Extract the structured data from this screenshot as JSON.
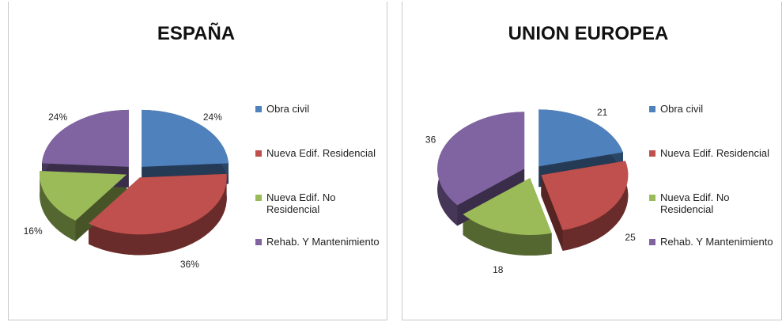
{
  "chart_data": [
    {
      "type": "pie",
      "title": "ESPAÑA",
      "categories": [
        "Obra civil",
        "Nueva Edif. Residencial",
        "Nueva Edif. No Residencial",
        "Rehab. Y Mantenimiento"
      ],
      "values": [
        24,
        36,
        16,
        24
      ],
      "value_labels": [
        "24%",
        "36%",
        "16%",
        "24%"
      ],
      "colors": [
        "#4f81bd",
        "#c0504d",
        "#9bbb59",
        "#8064a2"
      ]
    },
    {
      "type": "pie",
      "title": "UNION EUROPEA",
      "categories": [
        "Obra civil",
        "Nueva Edif. Residencial",
        "Nueva Edif. No Residencial",
        "Rehab. Y Mantenimiento"
      ],
      "values": [
        21,
        25,
        18,
        36
      ],
      "colors": [
        "#4f81bd",
        "#c0504d",
        "#9bbb59",
        "#8064a2"
      ]
    }
  ]
}
